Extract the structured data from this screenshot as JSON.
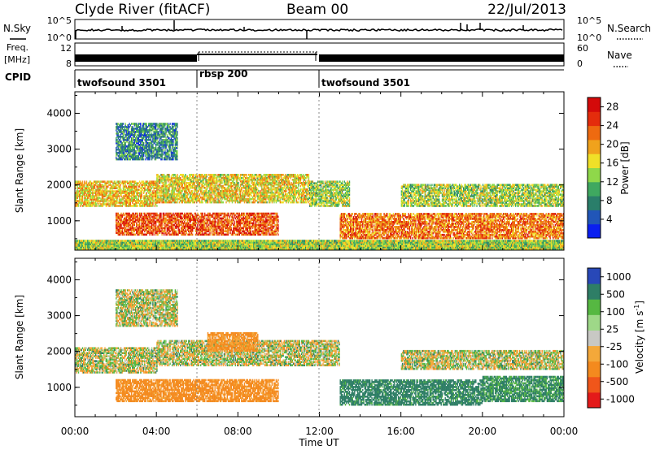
{
  "header": {
    "station": "Clyde River (fitACF)",
    "beam": "Beam 00",
    "date": "22/Jul/2013"
  },
  "sky_panel": {
    "left_label": "N.Sky",
    "right_label": "N.Search",
    "left_ticks": [
      "10^5",
      "10^0"
    ],
    "right_ticks": [
      "10^5",
      "10^0"
    ]
  },
  "freq_panel": {
    "left_label_line1": "Freq.",
    "left_label_line2": "[MHz]",
    "right_label": "Nave",
    "left_ticks": [
      "12",
      "8"
    ],
    "right_ticks": [
      "60",
      "0"
    ]
  },
  "cpid": {
    "label": "CPID",
    "segments": [
      {
        "name": "twofsound 3501",
        "start_hour": 0
      },
      {
        "name": "rbsp 200",
        "start_hour": 6
      },
      {
        "name": "twofsound 3501",
        "start_hour": 11.7
      }
    ]
  },
  "power_panel": {
    "ylabel": "Slant Range [km]",
    "yticks": [
      "4000",
      "3000",
      "2000",
      "1000"
    ],
    "colorbar_label": "Power [dB]",
    "colorbar_ticks": [
      "28",
      "24",
      "20",
      "16",
      "12",
      "8",
      "4"
    ]
  },
  "velocity_panel": {
    "ylabel": "Slant Range [km]",
    "yticks": [
      "4000",
      "3000",
      "2000",
      "1000"
    ],
    "colorbar_label": "Velocity [m s",
    "colorbar_label_sup": "-1",
    "colorbar_label_end": "]",
    "colorbar_ticks": [
      "1000",
      "500",
      "100",
      "25",
      "-25",
      "-100",
      "-500",
      "-1000"
    ]
  },
  "time_axis": {
    "xlabel": "Time UT",
    "ticks": [
      "00:00",
      "04:00",
      "08:00",
      "12:00",
      "16:00",
      "20:00",
      "00:00"
    ]
  },
  "chart_data": [
    {
      "type": "heatmap",
      "title": "Power",
      "xlabel": "Time UT",
      "ylabel": "Slant Range [km]",
      "xlim_hours": [
        0,
        24
      ],
      "ylim_km": [
        180,
        4600
      ],
      "colorbar": {
        "label": "Power [dB]",
        "range": [
          0,
          30
        ],
        "ticks": [
          28,
          24,
          20,
          16,
          12,
          8,
          4
        ]
      },
      "scatter_bands": [
        {
          "t_start": 0,
          "t_end": 24,
          "range_min": 200,
          "range_max": 450,
          "typical_dB": 14
        },
        {
          "t_start": 0,
          "t_end": 4,
          "range_min": 1400,
          "range_max": 2100,
          "typical_dB": 18
        },
        {
          "t_start": 4,
          "t_end": 11.5,
          "range_min": 1500,
          "range_max": 2300,
          "typical_dB": 17
        },
        {
          "t_start": 2,
          "t_end": 10,
          "range_min": 600,
          "range_max": 1200,
          "typical_dB": 24
        },
        {
          "t_start": 11.5,
          "t_end": 13.5,
          "range_min": 1400,
          "range_max": 2100,
          "typical_dB": 14
        },
        {
          "t_start": 13,
          "t_end": 24,
          "range_min": 500,
          "range_max": 1200,
          "typical_dB": 22
        },
        {
          "t_start": 16,
          "t_end": 24,
          "range_min": 1400,
          "range_max": 2000,
          "typical_dB": 14
        },
        {
          "t_start": 2,
          "t_end": 5,
          "range_min": 2700,
          "range_max": 3700,
          "typical_dB": 8
        }
      ]
    },
    {
      "type": "heatmap",
      "title": "Velocity",
      "xlabel": "Time UT",
      "ylabel": "Slant Range [km]",
      "xlim_hours": [
        0,
        24
      ],
      "ylim_km": [
        180,
        4600
      ],
      "colorbar": {
        "label": "Velocity [m s-1]",
        "range": [
          -1000,
          1000
        ],
        "ticks": [
          1000,
          500,
          100,
          25,
          -25,
          -100,
          -500,
          -1000
        ]
      },
      "scatter_bands": [
        {
          "t_start": 0,
          "t_end": 4,
          "range_min": 1400,
          "range_max": 2100,
          "typical_velocity": 0
        },
        {
          "t_start": 4,
          "t_end": 13,
          "range_min": 1600,
          "range_max": 2300,
          "typical_velocity": 0
        },
        {
          "t_start": 2,
          "t_end": 10,
          "range_min": 600,
          "range_max": 1200,
          "typical_velocity": -200
        },
        {
          "t_start": 6.5,
          "t_end": 9,
          "range_min": 2000,
          "range_max": 2500,
          "typical_velocity": -150
        },
        {
          "t_start": 13,
          "t_end": 20,
          "range_min": 500,
          "range_max": 1200,
          "typical_velocity": 200
        },
        {
          "t_start": 20,
          "t_end": 24,
          "range_min": 600,
          "range_max": 1300,
          "typical_velocity": 150
        },
        {
          "t_start": 16,
          "t_end": 24,
          "range_min": 1500,
          "range_max": 2000,
          "typical_velocity": 0
        },
        {
          "t_start": 2,
          "t_end": 5,
          "range_min": 2700,
          "range_max": 3700,
          "typical_velocity": 0
        }
      ]
    }
  ]
}
